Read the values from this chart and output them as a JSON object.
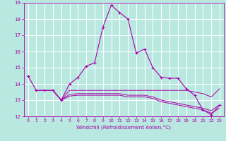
{
  "xlabel": "Windchill (Refroidissement éolien,°C)",
  "background_color": "#b8e8e0",
  "grid_color": "#ffffff",
  "line_color": "#aa00aa",
  "ylim": [
    12,
    19
  ],
  "xlim": [
    -0.5,
    23.5
  ],
  "yticks": [
    12,
    13,
    14,
    15,
    16,
    17,
    18,
    19
  ],
  "xticks": [
    0,
    1,
    2,
    3,
    4,
    5,
    6,
    7,
    8,
    9,
    10,
    11,
    12,
    13,
    14,
    15,
    16,
    17,
    18,
    19,
    20,
    21,
    22,
    23
  ],
  "series1_x": [
    0,
    1,
    2,
    3,
    4,
    5,
    6,
    7,
    8,
    9,
    10,
    11,
    12,
    13,
    14,
    15,
    16,
    17,
    18,
    19,
    20,
    21,
    22,
    23
  ],
  "series1_y": [
    14.5,
    13.6,
    13.6,
    13.6,
    13.0,
    14.0,
    14.4,
    15.1,
    15.3,
    17.5,
    18.85,
    18.4,
    18.0,
    15.9,
    16.15,
    15.0,
    14.4,
    14.35,
    14.35,
    13.7,
    13.3,
    12.4,
    12.1,
    12.7
  ],
  "series2_x": [
    1,
    2,
    3,
    4,
    5,
    6,
    7,
    8,
    9,
    10,
    11,
    12,
    13,
    14,
    15,
    16,
    17,
    18,
    19,
    20,
    21,
    22,
    23
  ],
  "series2_y": [
    13.6,
    13.6,
    13.6,
    13.0,
    13.6,
    13.6,
    13.6,
    13.6,
    13.6,
    13.6,
    13.6,
    13.6,
    13.6,
    13.6,
    13.6,
    13.6,
    13.6,
    13.6,
    13.6,
    13.5,
    13.4,
    13.2,
    13.7
  ],
  "series3_x": [
    3,
    4,
    5,
    6,
    7,
    8,
    9,
    10,
    11,
    12,
    13,
    14,
    15,
    16,
    17,
    18,
    19,
    20,
    21,
    22,
    23
  ],
  "series3_y": [
    13.6,
    13.0,
    13.35,
    13.4,
    13.4,
    13.4,
    13.4,
    13.4,
    13.4,
    13.3,
    13.3,
    13.3,
    13.2,
    13.0,
    12.9,
    12.8,
    12.7,
    12.6,
    12.5,
    12.35,
    12.7
  ],
  "series4_x": [
    3,
    4,
    5,
    6,
    7,
    8,
    9,
    10,
    11,
    12,
    13,
    14,
    15,
    16,
    17,
    18,
    19,
    20,
    21,
    22,
    23
  ],
  "series4_y": [
    13.6,
    13.0,
    13.25,
    13.3,
    13.3,
    13.3,
    13.3,
    13.3,
    13.3,
    13.2,
    13.2,
    13.2,
    13.1,
    12.9,
    12.8,
    12.7,
    12.6,
    12.5,
    12.4,
    12.2,
    12.5
  ]
}
